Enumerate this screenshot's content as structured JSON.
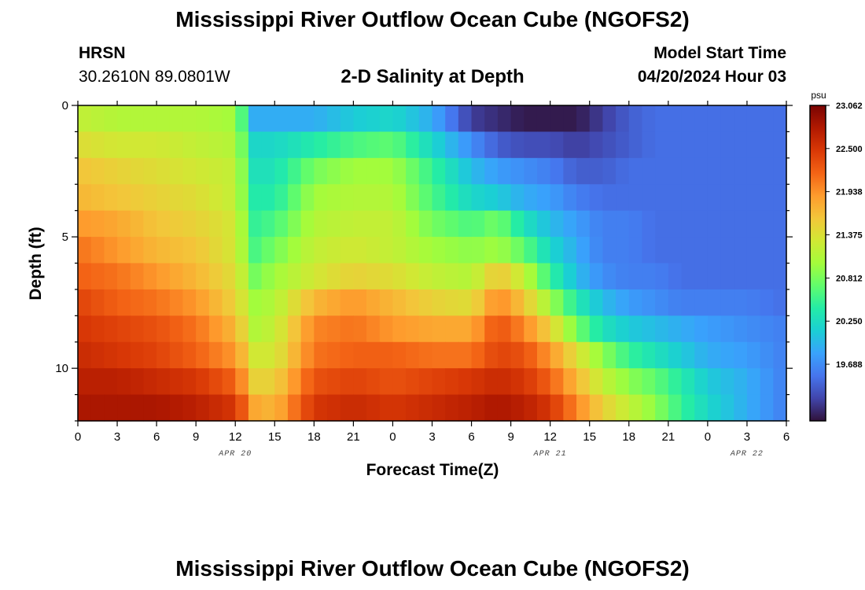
{
  "header": {
    "title": "Mississippi River Outflow Ocean Cube (NGOFS2)",
    "station_name": "HRSN",
    "station_coords": "30.2610N  89.0801W",
    "plot_title": "2-D Salinity at Depth",
    "model_start_label": "Model Start Time",
    "model_start_value": "04/20/2024 Hour 03"
  },
  "footer": {
    "title": "Mississippi River Outflow Ocean Cube (NGOFS2)"
  },
  "chart_data": {
    "type": "heatmap",
    "title": "2-D Salinity at Depth",
    "xlabel": "Forecast Time(Z)",
    "ylabel": "Depth (ft)",
    "x_tick_labels": [
      "0",
      "3",
      "6",
      "9",
      "12",
      "15",
      "18",
      "21",
      "0",
      "3",
      "6",
      "9",
      "12",
      "15",
      "18",
      "21",
      "0",
      "3",
      "6"
    ],
    "x_range_hours": [
      0,
      54
    ],
    "day_labels": [
      {
        "label": "APR 20",
        "hour": 12
      },
      {
        "label": "APR 21",
        "hour": 36
      },
      {
        "label": "APR 22",
        "hour": 51
      }
    ],
    "y_tick_labels": [
      "0",
      "5",
      "10"
    ],
    "y_range_ft": [
      0,
      12
    ],
    "colorbar": {
      "unit": "psu",
      "min": 18.95,
      "max": 23.062,
      "tick_labels": [
        "23.062",
        "22.500",
        "21.938",
        "21.375",
        "20.812",
        "20.250",
        "19.688"
      ],
      "colors": [
        "#30123b",
        "#4145ab",
        "#4675ed",
        "#39a2fc",
        "#1bcfd4",
        "#24eca6",
        "#61fc6c",
        "#a4fc3b",
        "#d1e834",
        "#f3c63a",
        "#fe9b2d",
        "#f36315",
        "#d93806",
        "#b11901",
        "#7a0403"
      ]
    },
    "depth_rows_ft": [
      0.5,
      1.5,
      2.5,
      3.5,
      4.5,
      5.5,
      6.5,
      7.5,
      8.5,
      9.5,
      10.5,
      11.5
    ],
    "hour_columns": [
      0,
      3,
      6,
      9,
      12,
      13.5,
      15,
      18,
      21,
      24,
      27,
      30,
      32,
      34,
      36,
      38,
      40,
      42,
      44,
      46,
      48,
      51,
      54
    ],
    "salinity_psu": [
      [
        21.2,
        21.1,
        21.1,
        21.1,
        21.0,
        19.9,
        19.9,
        19.9,
        20.1,
        20.2,
        19.9,
        19.2,
        19.1,
        19.0,
        19.0,
        19.0,
        19.2,
        19.4,
        19.5,
        19.5,
        19.5,
        19.5,
        19.5
      ],
      [
        21.4,
        21.3,
        21.3,
        21.2,
        21.1,
        20.2,
        20.2,
        20.4,
        20.6,
        20.7,
        20.2,
        19.7,
        19.4,
        19.3,
        19.3,
        19.2,
        19.3,
        19.4,
        19.5,
        19.5,
        19.5,
        19.5,
        19.5
      ],
      [
        21.6,
        21.5,
        21.4,
        21.3,
        21.2,
        20.3,
        20.3,
        20.8,
        21.0,
        21.0,
        20.5,
        20.0,
        19.8,
        19.7,
        19.6,
        19.4,
        19.4,
        19.5,
        19.5,
        19.5,
        19.5,
        19.5,
        19.5
      ],
      [
        21.7,
        21.6,
        21.5,
        21.4,
        21.2,
        20.4,
        20.4,
        21.0,
        21.1,
        21.1,
        20.6,
        20.2,
        20.1,
        19.9,
        19.8,
        19.6,
        19.5,
        19.5,
        19.5,
        19.5,
        19.5,
        19.5,
        19.5
      ],
      [
        21.9,
        21.8,
        21.6,
        21.5,
        21.3,
        20.5,
        20.6,
        21.1,
        21.2,
        21.2,
        20.8,
        20.6,
        20.8,
        20.3,
        20.0,
        19.8,
        19.6,
        19.6,
        19.5,
        19.5,
        19.5,
        19.5,
        19.5
      ],
      [
        22.1,
        21.9,
        21.7,
        21.6,
        21.3,
        20.6,
        20.8,
        21.2,
        21.3,
        21.2,
        21.0,
        20.9,
        21.0,
        20.7,
        20.2,
        19.9,
        19.6,
        19.6,
        19.5,
        19.5,
        19.5,
        19.5,
        19.5
      ],
      [
        22.2,
        22.1,
        21.9,
        21.7,
        21.4,
        20.8,
        21.0,
        21.3,
        21.5,
        21.4,
        21.2,
        21.1,
        21.6,
        21.2,
        20.5,
        20.0,
        19.7,
        19.6,
        19.6,
        19.5,
        19.5,
        19.5,
        19.5
      ],
      [
        22.4,
        22.2,
        22.1,
        21.9,
        21.5,
        21.0,
        21.1,
        21.7,
        21.9,
        21.7,
        21.5,
        21.4,
        22.0,
        21.6,
        21.0,
        20.4,
        20.0,
        19.8,
        19.7,
        19.6,
        19.6,
        19.6,
        19.5
      ],
      [
        22.5,
        22.4,
        22.3,
        22.1,
        21.7,
        21.1,
        21.2,
        22.0,
        22.1,
        21.9,
        21.8,
        21.8,
        22.3,
        22.0,
        21.5,
        20.8,
        20.3,
        20.1,
        20.0,
        19.9,
        19.8,
        19.7,
        19.6
      ],
      [
        22.6,
        22.5,
        22.4,
        22.2,
        21.9,
        21.3,
        21.3,
        22.1,
        22.2,
        22.2,
        22.1,
        22.1,
        22.4,
        22.3,
        21.9,
        21.4,
        20.9,
        20.5,
        20.3,
        20.1,
        19.9,
        19.8,
        19.6
      ],
      [
        22.7,
        22.7,
        22.6,
        22.5,
        22.2,
        21.5,
        21.5,
        22.3,
        22.4,
        22.3,
        22.4,
        22.5,
        22.6,
        22.5,
        22.2,
        21.7,
        21.2,
        20.9,
        20.7,
        20.4,
        20.1,
        19.9,
        19.6
      ],
      [
        22.8,
        22.8,
        22.8,
        22.7,
        22.5,
        21.8,
        21.7,
        22.5,
        22.6,
        22.5,
        22.6,
        22.7,
        22.8,
        22.7,
        22.5,
        22.0,
        21.5,
        21.2,
        20.9,
        20.5,
        20.2,
        19.9,
        19.6
      ]
    ]
  }
}
